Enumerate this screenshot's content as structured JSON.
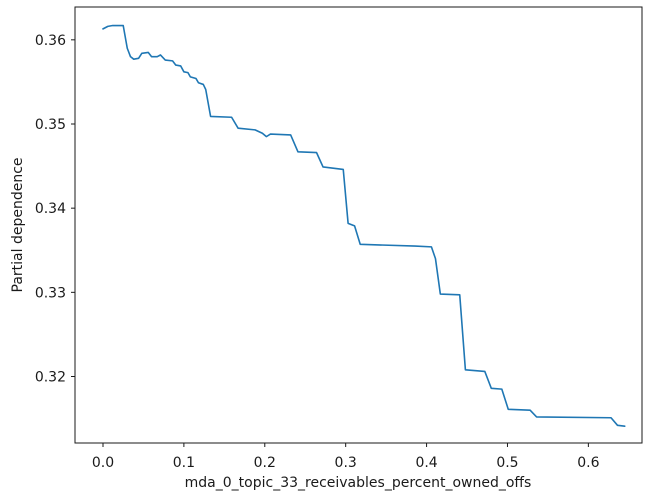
{
  "figure": {
    "background": "#ffffff",
    "line_color": "#1f77b4",
    "spine_color": "#1a1a1a",
    "text_color": "#1a1a1a"
  },
  "chart_data": {
    "type": "line",
    "title": "",
    "xlabel": "mda_0_topic_33_receivables_percent_owned_offs",
    "ylabel": "Partial dependence",
    "legend": null,
    "grid": false,
    "xlim": [
      -0.0346,
      0.6663
    ],
    "ylim": [
      0.3121,
      0.3639
    ],
    "x_ticks": [
      0.0,
      0.1,
      0.2,
      0.3,
      0.4,
      0.5,
      0.6
    ],
    "x_tick_labels": [
      "0.0",
      "0.1",
      "0.2",
      "0.3",
      "0.4",
      "0.5",
      "0.6"
    ],
    "y_ticks": [
      0.32,
      0.33,
      0.34,
      0.35,
      0.36
    ],
    "y_tick_labels": [
      "0.32",
      "0.33",
      "0.34",
      "0.35",
      "0.36"
    ],
    "series": [
      {
        "name": "partial_dependence",
        "x": [
          0.0,
          0.006,
          0.012,
          0.025,
          0.03,
          0.034,
          0.038,
          0.044,
          0.048,
          0.056,
          0.06,
          0.067,
          0.071,
          0.077,
          0.086,
          0.09,
          0.096,
          0.1,
          0.105,
          0.108,
          0.115,
          0.118,
          0.124,
          0.127,
          0.133,
          0.159,
          0.167,
          0.188,
          0.197,
          0.202,
          0.207,
          0.232,
          0.241,
          0.264,
          0.272,
          0.297,
          0.303,
          0.311,
          0.318,
          0.386,
          0.406,
          0.411,
          0.417,
          0.441,
          0.448,
          0.472,
          0.48,
          0.493,
          0.501,
          0.528,
          0.536,
          0.628,
          0.636,
          0.645
        ],
        "y": [
          0.3613,
          0.3616,
          0.3617,
          0.3617,
          0.359,
          0.358,
          0.3577,
          0.3578,
          0.3584,
          0.3585,
          0.358,
          0.358,
          0.3582,
          0.3576,
          0.3575,
          0.357,
          0.3569,
          0.3562,
          0.3561,
          0.3556,
          0.3554,
          0.3549,
          0.3547,
          0.3541,
          0.3509,
          0.3508,
          0.3495,
          0.3493,
          0.3489,
          0.3485,
          0.3488,
          0.3487,
          0.3467,
          0.3466,
          0.3449,
          0.3446,
          0.3382,
          0.3379,
          0.3357,
          0.3355,
          0.3354,
          0.334,
          0.3298,
          0.3297,
          0.3208,
          0.3206,
          0.3186,
          0.3185,
          0.3161,
          0.316,
          0.3152,
          0.3151,
          0.3142,
          0.3141
        ]
      }
    ]
  }
}
